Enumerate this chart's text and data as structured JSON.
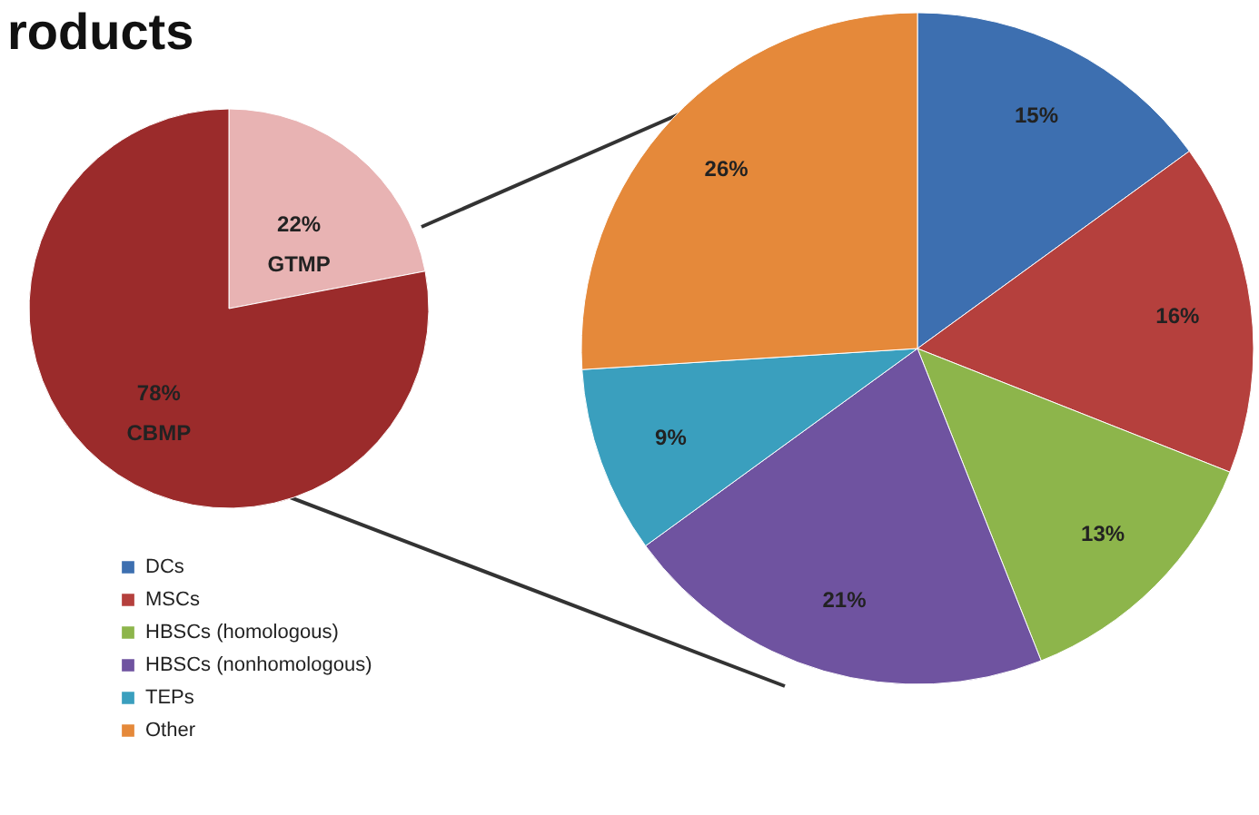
{
  "chart_data": [
    {
      "type": "pie",
      "title": "roducts",
      "categories": [
        "GTMP",
        "CBMP"
      ],
      "values": [
        22,
        78
      ],
      "colors": [
        "#e8b3b3",
        "#9b2b2b"
      ],
      "value_labels": [
        "22%",
        "78%"
      ],
      "legend": false
    },
    {
      "type": "pie",
      "categories": [
        "DCs",
        "MSCs",
        "HBSCs (homologous)",
        "HBSCs (nonhomologous)",
        "TEPs",
        "Other"
      ],
      "values": [
        15,
        16,
        13,
        21,
        9,
        26
      ],
      "colors": [
        "#3d6fb0",
        "#b5403d",
        "#8db54b",
        "#6f53a0",
        "#3a9fbe",
        "#e5893a"
      ],
      "value_labels": [
        "15%",
        "16%",
        "13%",
        "21%",
        "9%",
        "26%"
      ],
      "legend": "bottom left"
    }
  ]
}
